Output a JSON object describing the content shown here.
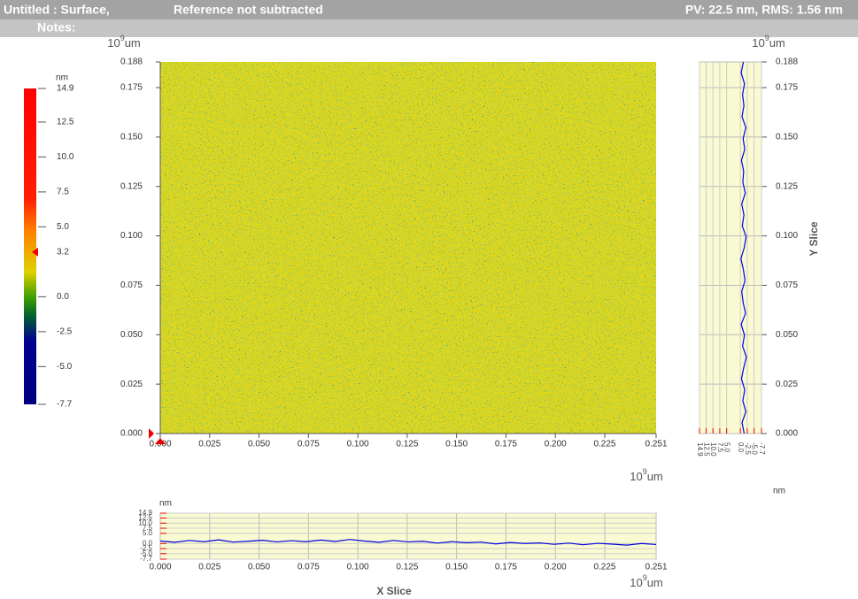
{
  "header": {
    "title": "Untitled : Surface,",
    "reference": "Reference not subtracted",
    "stats": "PV: 22.5 nm, RMS: 1.56 nm",
    "notes": "Notes:"
  },
  "unit": {
    "base": "10",
    "exponent": "9",
    "suffix": "um"
  },
  "colorbar": {
    "unit": "nm",
    "range": [
      -7.7,
      14.9
    ],
    "marker": 3.2,
    "ticks": [
      14.9,
      12.5,
      {
        "value": 10,
        "label": "10.0"
      },
      7.5,
      {
        "value": 5,
        "label": "5.0"
      },
      {
        "value": 0,
        "label": "0.0"
      },
      -2.5,
      {
        "value": -5,
        "label": "-5.0"
      },
      -7.7
    ]
  },
  "map": {
    "xlim": [
      0,
      0.251
    ],
    "ylim": [
      0,
      0.188
    ],
    "xticks": [
      {
        "value": 0,
        "label": "0.000"
      },
      0.025,
      {
        "value": 0.05,
        "label": "0.050"
      },
      0.075,
      {
        "value": 0.1,
        "label": "0.100"
      },
      0.125,
      {
        "value": 0.15,
        "label": "0.150"
      },
      0.175,
      {
        "value": 0.2,
        "label": "0.200"
      },
      0.225,
      0.251
    ],
    "yticks": [
      {
        "value": 0,
        "label": "0.000"
      },
      0.025,
      {
        "value": 0.05,
        "label": "0.050"
      },
      0.075,
      {
        "value": 0.1,
        "label": "0.100"
      },
      0.125,
      {
        "value": 0.15,
        "label": "0.150"
      },
      0.175,
      0.188
    ]
  },
  "x_slice": {
    "title": "X Slice",
    "unit": "nm",
    "color": "#0000dd",
    "values": [
      1.2,
      0.6,
      1.5,
      0.9,
      1.8,
      0.7,
      1.1,
      1.6,
      0.8,
      1.4,
      0.9,
      1.7,
      1.0,
      2.0,
      1.2,
      0.6,
      1.5,
      0.8,
      1.1,
      0.2,
      0.9,
      0.4,
      0.7,
      -0.2,
      0.5,
      0.0,
      0.3,
      -0.4,
      0.2,
      -0.6,
      0.1,
      -0.3,
      -0.8,
      0.0,
      -0.5
    ]
  },
  "y_slice": {
    "title": "Y Slice",
    "unit": "nm",
    "color": "#0000dd",
    "values": [
      -1.4,
      -0.6,
      -2.0,
      -0.9,
      -1.6,
      -0.4,
      -1.2,
      -2.2,
      -0.8,
      -1.5,
      -0.3,
      -1.9,
      -1.0,
      -0.5,
      -1.7,
      -1.1,
      -0.2,
      -1.4,
      -2.1,
      -0.7,
      -1.3,
      -0.5,
      -1.8,
      -0.9,
      -1.2,
      -0.4,
      -1.6,
      -1.0,
      -2.0,
      -0.6,
      -1.3,
      -0.8,
      -1.5,
      -0.3,
      -1.1
    ]
  }
}
